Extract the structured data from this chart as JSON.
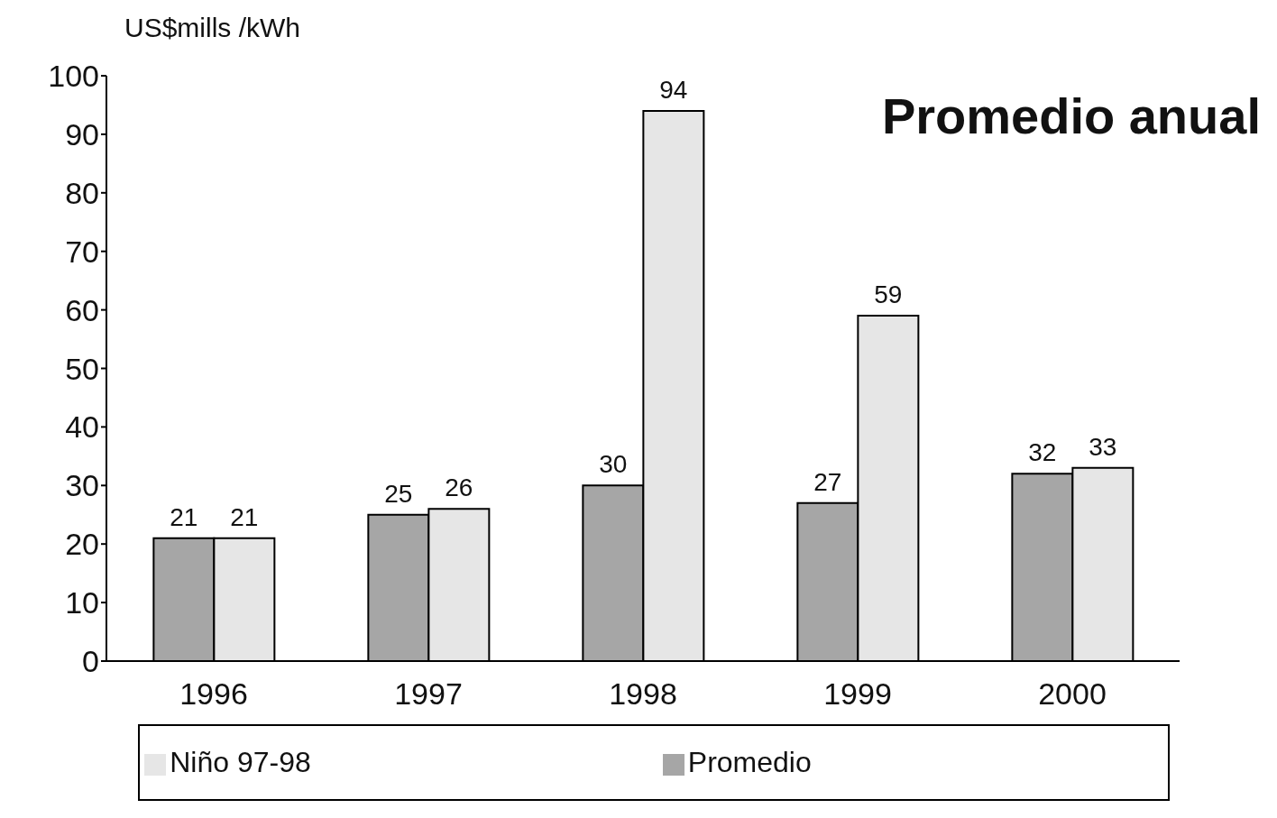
{
  "chart_data": {
    "type": "bar",
    "title": "Promedio anual",
    "ylabel": "US$mills /kWh",
    "categories": [
      "1996",
      "1997",
      "1998",
      "1999",
      "2000"
    ],
    "series": [
      {
        "name": "Promedio",
        "color": "#a6a6a6",
        "values": [
          21,
          25,
          30,
          27,
          32
        ]
      },
      {
        "name": "Niño 97-98",
        "color": "#e6e6e6",
        "values": [
          21,
          26,
          94,
          59,
          33
        ]
      }
    ],
    "ylim": [
      0,
      100
    ],
    "yticks": [
      0,
      10,
      20,
      30,
      40,
      50,
      60,
      70,
      80,
      90,
      100
    ],
    "grid": false,
    "legend": "bottom",
    "data_labels": true
  }
}
